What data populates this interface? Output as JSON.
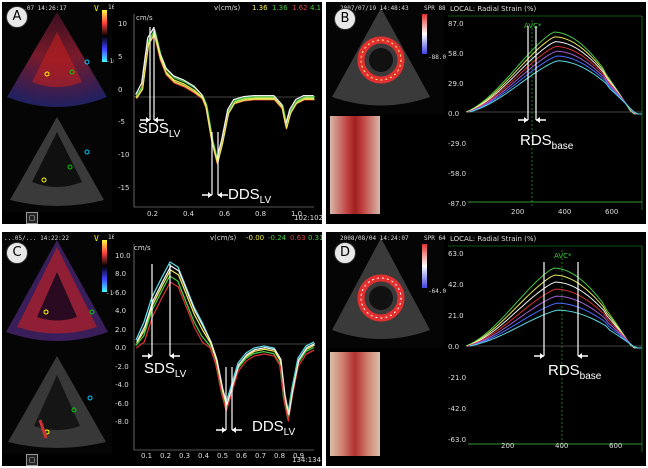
{
  "panels": {
    "A": {
      "badge": "A",
      "timestamp": "...07 14:26:17",
      "scale_top": "16",
      "scale_bot": "-16",
      "v_marker": "V",
      "header": {
        "unit": "v(cm/s)",
        "v1": "1.36",
        "v2": "1.36",
        "v3": "1.62",
        "v4": "4.1"
      },
      "y_unit": "cm/s",
      "y_ticks": [
        "10",
        "5",
        "0",
        "-5",
        "-10",
        "-15"
      ],
      "x_ticks": [
        "0.2",
        "0.4",
        "0.6",
        "0.8",
        "1.0"
      ],
      "footer": "102:102",
      "ann_peak": {
        "main": "SDS",
        "sub": "LV"
      },
      "ann_trough": {
        "main": "DDS",
        "sub": "LV"
      },
      "button": "▢"
    },
    "B": {
      "badge": "B",
      "timestamp": "2007/07/19 14:48:43",
      "header": "LOCAL: Radial Strain (%)",
      "scale_top": "SPR 88.0",
      "scale_bot": "-88.0",
      "y_ticks": [
        "87.0",
        "58.0",
        "29.0",
        "0.0",
        "-29.0",
        "-58.0",
        "-87.0"
      ],
      "x_ticks": [
        "200",
        "400",
        "600"
      ],
      "avc": "AVC*",
      "ann": {
        "main": "RDS",
        "sub": "base"
      }
    },
    "C": {
      "badge": "C",
      "timestamp": "...05/... 14:22:22",
      "scale_top": "16",
      "scale_bot": "-16",
      "v_marker": "V",
      "header": {
        "unit": "v(cm/s)",
        "v1": "-0.00",
        "v2": "-0.24",
        "v3": "0.63",
        "v4": "0.31"
      },
      "y_unit": "cm/s",
      "y_ticks": [
        "10.0",
        "8.0",
        "6.0",
        "4.0",
        "2.0",
        "0.0",
        "-2.0",
        "-4.0",
        "-6.0",
        "-8.0"
      ],
      "x_ticks": [
        "0.1",
        "0.2",
        "0.3",
        "0.4",
        "0.5",
        "0.6",
        "0.7",
        "0.8",
        "0.9"
      ],
      "footer": "134:134",
      "ann_peak": {
        "main": "SDS",
        "sub": "LV"
      },
      "ann_trough": {
        "main": "DDS",
        "sub": "LV"
      },
      "button": "▢"
    },
    "D": {
      "badge": "D",
      "timestamp": "2008/08/04 14:24:07",
      "header": "LOCAL: Radial Strain (%)",
      "scale_top": "SPR 64.0",
      "scale_bot": "-64.0",
      "y_ticks": [
        "63.0",
        "42.0",
        "21.0",
        "0.0",
        "-21.0",
        "-42.0",
        "-63.0"
      ],
      "x_ticks": [
        "200",
        "400",
        "600"
      ],
      "avc": "AVC*",
      "ann": {
        "main": "RDS",
        "sub": "base"
      }
    }
  },
  "colors": {
    "yellow": "#e8e85a",
    "green": "#45c845",
    "red": "#d83030",
    "white": "#f0f0f0",
    "cyan": "#5ad8e0",
    "purple": "#a060d0",
    "blue": "#4a6cff"
  }
}
